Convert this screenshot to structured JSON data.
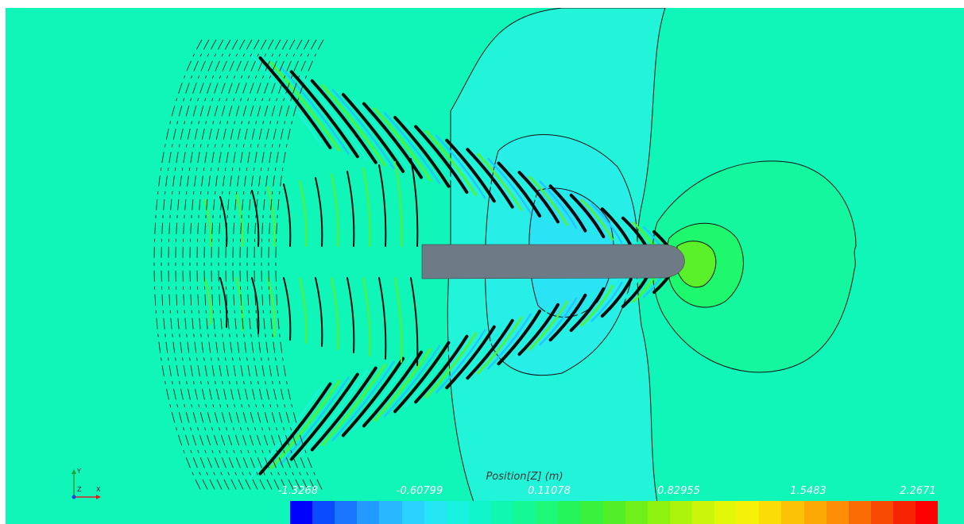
{
  "legend": {
    "title": "Position[Z] (m)",
    "tick_labels": [
      "-1.3268",
      "-0.60799",
      "0.11078",
      "0.82955",
      "1.5483",
      "2.2671"
    ],
    "colors": [
      "#0000ff",
      "#0b4bff",
      "#1976ff",
      "#229aff",
      "#28b8ff",
      "#2ad2ff",
      "#25e6f3",
      "#19f2de",
      "#10f6c8",
      "#10f8b0",
      "#14f995",
      "#1cf878",
      "#24f55a",
      "#38f23e",
      "#52ef28",
      "#6ff018",
      "#8ef210",
      "#acf40c",
      "#c9f60a",
      "#e2f808",
      "#f5f207",
      "#fbdc07",
      "#fcc306",
      "#fca905",
      "#fc8d05",
      "#fb6d04",
      "#f84a03",
      "#f62402",
      "#ff0000"
    ]
  },
  "triad": {
    "y_label": "Y",
    "z_label": "Z",
    "x_label": "X"
  },
  "scene": {
    "background_color": "#10f5b8",
    "hull_color": "#6e7b86",
    "contour_color": "#0a0a0a"
  }
}
